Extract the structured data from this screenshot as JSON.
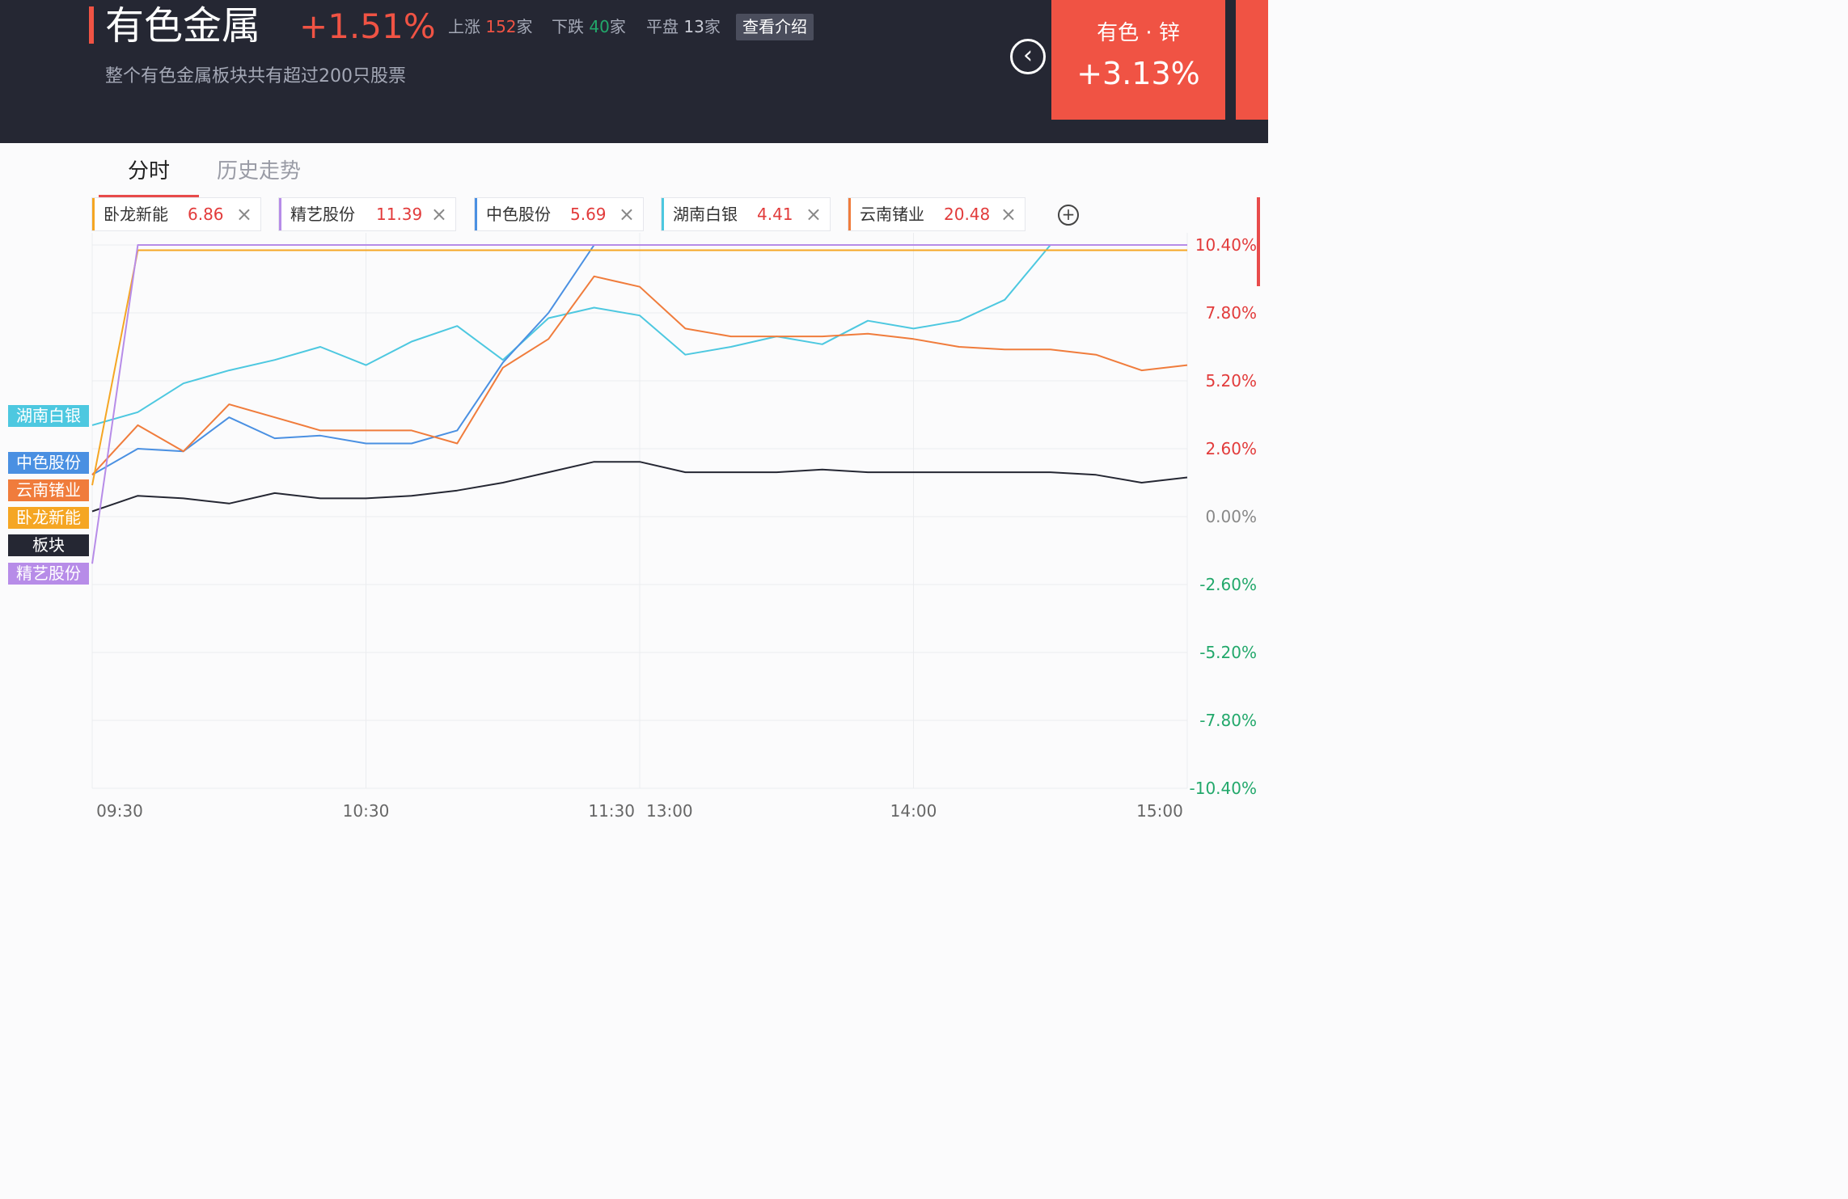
{
  "header": {
    "title": "有色金属",
    "change": "+1.51%",
    "stats": {
      "up_label": "上涨",
      "up_count": "152",
      "up_unit": "家",
      "down_label": "下跌",
      "down_count": "40",
      "down_unit": "家",
      "flat_label": "平盘",
      "flat_count": "13",
      "flat_unit": "家"
    },
    "intro_button": "查看介绍",
    "subtitle": "整个有色金属板块共有超过200只股票",
    "back_icon": "chevron-left-icon",
    "related_card": {
      "name": "有色 · 锌",
      "change": "+3.13%"
    }
  },
  "tabs": [
    {
      "label": "分时"
    },
    {
      "label": "历史走势"
    }
  ],
  "chips": [
    {
      "name": "卧龙新能",
      "value": "6.86",
      "color": "#f5a623"
    },
    {
      "name": "精艺股份",
      "value": "11.39",
      "color": "#b78ce8"
    },
    {
      "name": "中色股份",
      "value": "5.69",
      "color": "#4a90e2"
    },
    {
      "name": "湖南白银",
      "value": "4.41",
      "color": "#4dc8e0"
    },
    {
      "name": "云南锗业",
      "value": "20.48",
      "color": "#f07c3c"
    }
  ],
  "legend": [
    {
      "label": "湖南白银",
      "color": "#4dc8e0"
    },
    {
      "label": "中色股份",
      "color": "#4a90e2"
    },
    {
      "label": "云南锗业",
      "color": "#f07c3c"
    },
    {
      "label": "卧龙新能",
      "color": "#f5a623"
    },
    {
      "label": "板块",
      "color": "#252733"
    },
    {
      "label": "精艺股份",
      "color": "#b78ce8"
    }
  ],
  "chart_data": {
    "type": "line",
    "y_ticks": [
      {
        "value": 10.4,
        "label": "10.40%"
      },
      {
        "value": 7.8,
        "label": "7.80%"
      },
      {
        "value": 5.2,
        "label": "5.20%"
      },
      {
        "value": 2.6,
        "label": "2.60%"
      },
      {
        "value": 0,
        "label": "0.00%"
      },
      {
        "value": -2.6,
        "label": "-2.60%"
      },
      {
        "value": -5.2,
        "label": "-5.20%"
      },
      {
        "value": -7.8,
        "label": "-7.80%"
      },
      {
        "value": -10.4,
        "label": "-10.40%"
      }
    ],
    "ylim": [
      -10.4,
      10.4
    ],
    "x_ticks": [
      "09:30",
      "10:30",
      "11:30",
      "13:00",
      "14:00",
      "15:00"
    ],
    "x_times": [
      "09:30",
      "09:40",
      "09:50",
      "10:00",
      "10:10",
      "10:20",
      "10:30",
      "10:40",
      "10:50",
      "11:00",
      "11:10",
      "11:20",
      "11:30",
      "13:10",
      "13:20",
      "13:30",
      "13:40",
      "13:50",
      "14:00",
      "14:10",
      "14:20",
      "14:30",
      "14:40",
      "14:50",
      "15:00"
    ],
    "grid": true,
    "colors": {
      "up": "#e23b3b",
      "down": "#22a86b",
      "neutral": "#888888"
    },
    "series": [
      {
        "name": "湖南白银",
        "color": "#4dc8e0",
        "values": [
          3.5,
          4.0,
          5.1,
          5.6,
          6.0,
          6.5,
          5.8,
          6.7,
          7.3,
          6.0,
          7.6,
          8.0,
          7.7,
          6.2,
          6.5,
          6.9,
          6.6,
          7.5,
          7.2,
          7.5,
          8.3,
          10.4,
          10.4,
          10.4,
          10.4
        ]
      },
      {
        "name": "中色股份",
        "color": "#4a90e2",
        "values": [
          1.6,
          2.6,
          2.5,
          3.8,
          3.0,
          3.1,
          2.8,
          2.8,
          3.3,
          5.9,
          7.8,
          10.4,
          10.4,
          10.4,
          10.4,
          10.4,
          10.4,
          10.4,
          10.4,
          10.4,
          10.4,
          10.4,
          10.4,
          10.4,
          10.4
        ]
      },
      {
        "name": "云南锗业",
        "color": "#f07c3c",
        "values": [
          1.6,
          3.5,
          2.5,
          4.3,
          3.8,
          3.3,
          3.3,
          3.3,
          2.8,
          5.7,
          6.8,
          9.2,
          8.8,
          7.2,
          6.9,
          6.9,
          6.9,
          7.0,
          6.8,
          6.5,
          6.4,
          6.4,
          6.2,
          5.6,
          5.8
        ]
      },
      {
        "name": "卧龙新能",
        "color": "#f5a623",
        "values": [
          1.2,
          10.2,
          10.2,
          10.2,
          10.2,
          10.2,
          10.2,
          10.2,
          10.2,
          10.2,
          10.2,
          10.2,
          10.2,
          10.2,
          10.2,
          10.2,
          10.2,
          10.2,
          10.2,
          10.2,
          10.2,
          10.2,
          10.2,
          10.2,
          10.2
        ]
      },
      {
        "name": "板块",
        "color": "#252733",
        "values": [
          0.2,
          0.8,
          0.7,
          0.5,
          0.9,
          0.7,
          0.7,
          0.8,
          1.0,
          1.3,
          1.7,
          2.1,
          2.1,
          1.7,
          1.7,
          1.7,
          1.8,
          1.7,
          1.7,
          1.7,
          1.7,
          1.7,
          1.6,
          1.3,
          1.5
        ]
      },
      {
        "name": "精艺股份",
        "color": "#b78ce8",
        "values": [
          -1.8,
          10.4,
          10.4,
          10.4,
          10.4,
          10.4,
          10.4,
          10.4,
          10.4,
          10.4,
          10.4,
          10.4,
          10.4,
          10.4,
          10.4,
          10.4,
          10.4,
          10.4,
          10.4,
          10.4,
          10.4,
          10.4,
          10.4,
          10.4,
          10.4
        ]
      }
    ]
  }
}
